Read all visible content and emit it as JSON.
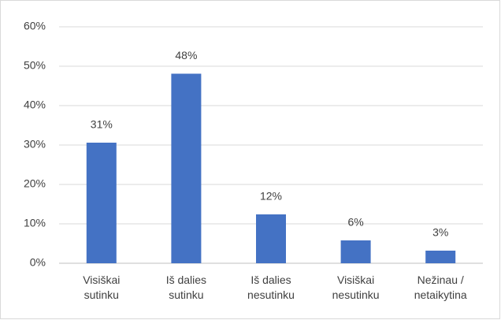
{
  "chart_data": {
    "type": "bar",
    "categories": [
      "Visiškai\nsutinku",
      "Iš dalies\nsutinku",
      "Iš dalies\nnesutinku",
      "Visiškai\nnesutinku",
      "Nežinau /\nnetaikytina"
    ],
    "values": [
      30.6,
      48.1,
      12.4,
      5.8,
      3.2
    ],
    "value_labels": [
      "31%",
      "48%",
      "12%",
      "6%",
      "3%"
    ],
    "color": "#4472c4",
    "ylim": [
      0,
      60
    ],
    "yticks": [
      {
        "value": 0,
        "label": "0%"
      },
      {
        "value": 10,
        "label": "10%"
      },
      {
        "value": 20,
        "label": "20%"
      },
      {
        "value": 30,
        "label": "30%"
      },
      {
        "value": 40,
        "label": "40%"
      },
      {
        "value": 50,
        "label": "50%"
      },
      {
        "value": 60,
        "label": "60%"
      }
    ],
    "grid": true
  }
}
